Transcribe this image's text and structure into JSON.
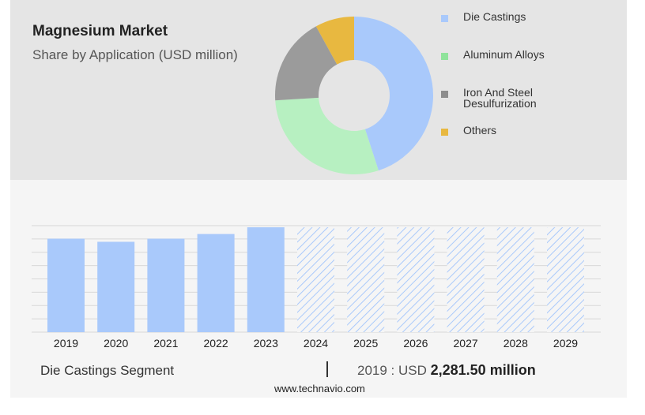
{
  "chart_data": [
    {
      "type": "pie",
      "title": "Magnesium Market",
      "subtitle": "Share by Application (USD million)",
      "series": [
        {
          "name": "Die Castings",
          "value": 45,
          "color": "#a9c9fb"
        },
        {
          "name": "Aluminum Alloys",
          "value": 29,
          "color": "#b7f0c1"
        },
        {
          "name": "Iron And Steel Desulfurization",
          "value": 18,
          "color": "#9b9b9b"
        },
        {
          "name": "Others",
          "value": 8,
          "color": "#e8b840"
        }
      ],
      "legend_position": "right"
    },
    {
      "type": "bar",
      "categories": [
        "2019",
        "2020",
        "2021",
        "2022",
        "2023",
        "2024",
        "2025",
        "2026",
        "2027",
        "2028",
        "2029"
      ],
      "values": [
        2281.5,
        2206,
        2281.5,
        2396,
        2560,
        2560,
        2560,
        2560,
        2560,
        2560,
        2560
      ],
      "forecast_from": "2024",
      "ylim": [
        0,
        2600
      ],
      "grid": true,
      "bar_color": "#a9c9fb",
      "forecast_hatch_color": "#a9c9fb"
    }
  ],
  "footer": {
    "segment_label": "Die Castings Segment",
    "value_prefix": "2019 : USD",
    "value_bold": "2,281.50 million"
  },
  "credit": "www.technavio.com"
}
